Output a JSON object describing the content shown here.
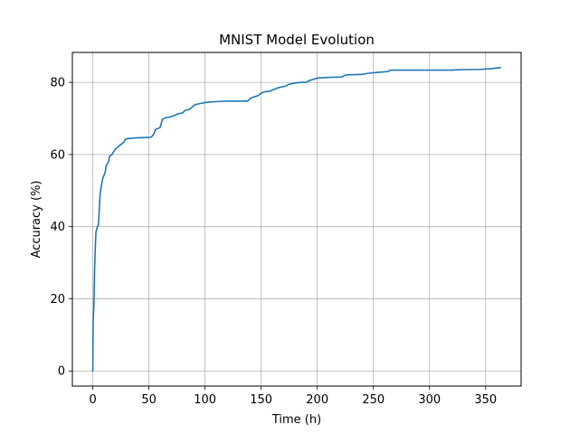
{
  "chart_data": {
    "type": "line",
    "title": "MNIST Model Evolution",
    "xlabel": "Time (h)",
    "ylabel": "Accuracy (%)",
    "xlim": [
      -18.2,
      381.6
    ],
    "ylim": [
      -4.2,
      88.3
    ],
    "xticks": [
      0,
      50,
      100,
      150,
      200,
      250,
      300,
      350
    ],
    "yticks": [
      0,
      20,
      40,
      60,
      80
    ],
    "xtick_labels": [
      "0",
      "50",
      "100",
      "150",
      "200",
      "250",
      "300",
      "350"
    ],
    "ytick_labels": [
      "0",
      "20",
      "40",
      "60",
      "80"
    ],
    "grid": true,
    "legend": null,
    "series": [
      {
        "color": "#1f77b4",
        "x": [
          0,
          0.3,
          0.8,
          1.2,
          1.6,
          2.2,
          2.8,
          4,
          5,
          5.5,
          6.5,
          8,
          9,
          11,
          12,
          14,
          15,
          17,
          18,
          20,
          22,
          24,
          26,
          28,
          29,
          30,
          31,
          38,
          45,
          52,
          54,
          56,
          58,
          60,
          62,
          65,
          70,
          74,
          76,
          80,
          82,
          86,
          88,
          91,
          95,
          100,
          106,
          112,
          120,
          128,
          133,
          138,
          140,
          142,
          147,
          150,
          153,
          157,
          165,
          172,
          175,
          180,
          185,
          190,
          193,
          195,
          198,
          200,
          210,
          222,
          225,
          228,
          240,
          245,
          255,
          263,
          265,
          270,
          280,
          300,
          320,
          325,
          345,
          355,
          363
        ],
        "y": [
          0,
          13.5,
          17,
          21,
          28,
          34,
          38.5,
          40,
          40.5,
          43,
          49,
          52,
          53.5,
          55,
          57,
          58,
          59.5,
          60,
          60.5,
          61.5,
          62,
          62.5,
          63,
          63.5,
          64.3,
          64.3,
          64.4,
          64.6,
          64.7,
          64.8,
          65.5,
          67,
          67.2,
          67.5,
          69.8,
          70.2,
          70.5,
          71,
          71.3,
          71.5,
          72.2,
          72.5,
          73,
          73.8,
          74.1,
          74.4,
          74.6,
          74.7,
          74.8,
          74.8,
          74.8,
          74.8,
          75.5,
          75.8,
          76.3,
          77,
          77.4,
          77.5,
          78.5,
          79,
          79.5,
          79.8,
          80,
          80,
          80.5,
          80.7,
          81,
          81.2,
          81.4,
          81.5,
          82,
          82.1,
          82.2,
          82.5,
          82.8,
          83,
          83.4,
          83.4,
          83.4,
          83.4,
          83.4,
          83.5,
          83.6,
          83.8,
          84.1
        ]
      }
    ]
  }
}
